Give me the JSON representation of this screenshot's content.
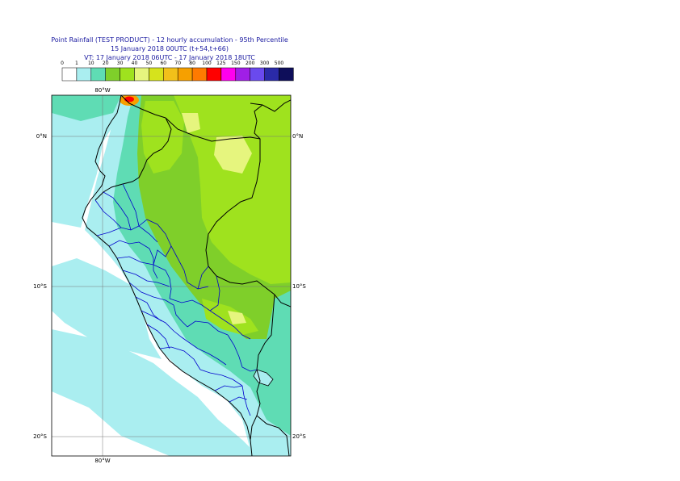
{
  "title": {
    "line1": "Point Rainfall (TEST PRODUCT) - 12 hourly accumulation - 95th Percentile",
    "line2": "15 January 2018 00UTC (t+54,t+66)",
    "line3": "VT: 17 January 2018 06UTC - 17 January 2018 18UTC"
  },
  "legend": {
    "thresholds": [
      "0",
      "1",
      "10",
      "20",
      "30",
      "40",
      "50",
      "60",
      "70",
      "80",
      "100",
      "125",
      "150",
      "200",
      "300",
      "500"
    ],
    "colors": [
      "#ffffff",
      "#aaeef0",
      "#5fdcb4",
      "#7fcf2a",
      "#9fe21e",
      "#e6f57e",
      "#d6e31c",
      "#f2c01a",
      "#f6a000",
      "#ff7a00",
      "#ff0000",
      "#ff00ee",
      "#a01fe6",
      "#6a4aee",
      "#2a2aa8",
      "#0e0e5a"
    ]
  },
  "map": {
    "lat_labels": [
      "0°N",
      "10°S",
      "20°S"
    ],
    "lon_label_top": "80°W",
    "lon_label_bottom": "80°W",
    "colors": {
      "sea": "#ffffff",
      "light": "#aaeef0",
      "teal": "#5fdcb4",
      "green": "#7fcf2a",
      "lime": "#9fe21e",
      "pale": "#e6f57e",
      "country_border": "#000000",
      "region_border": "#0000cc",
      "grid": "#777777"
    }
  }
}
